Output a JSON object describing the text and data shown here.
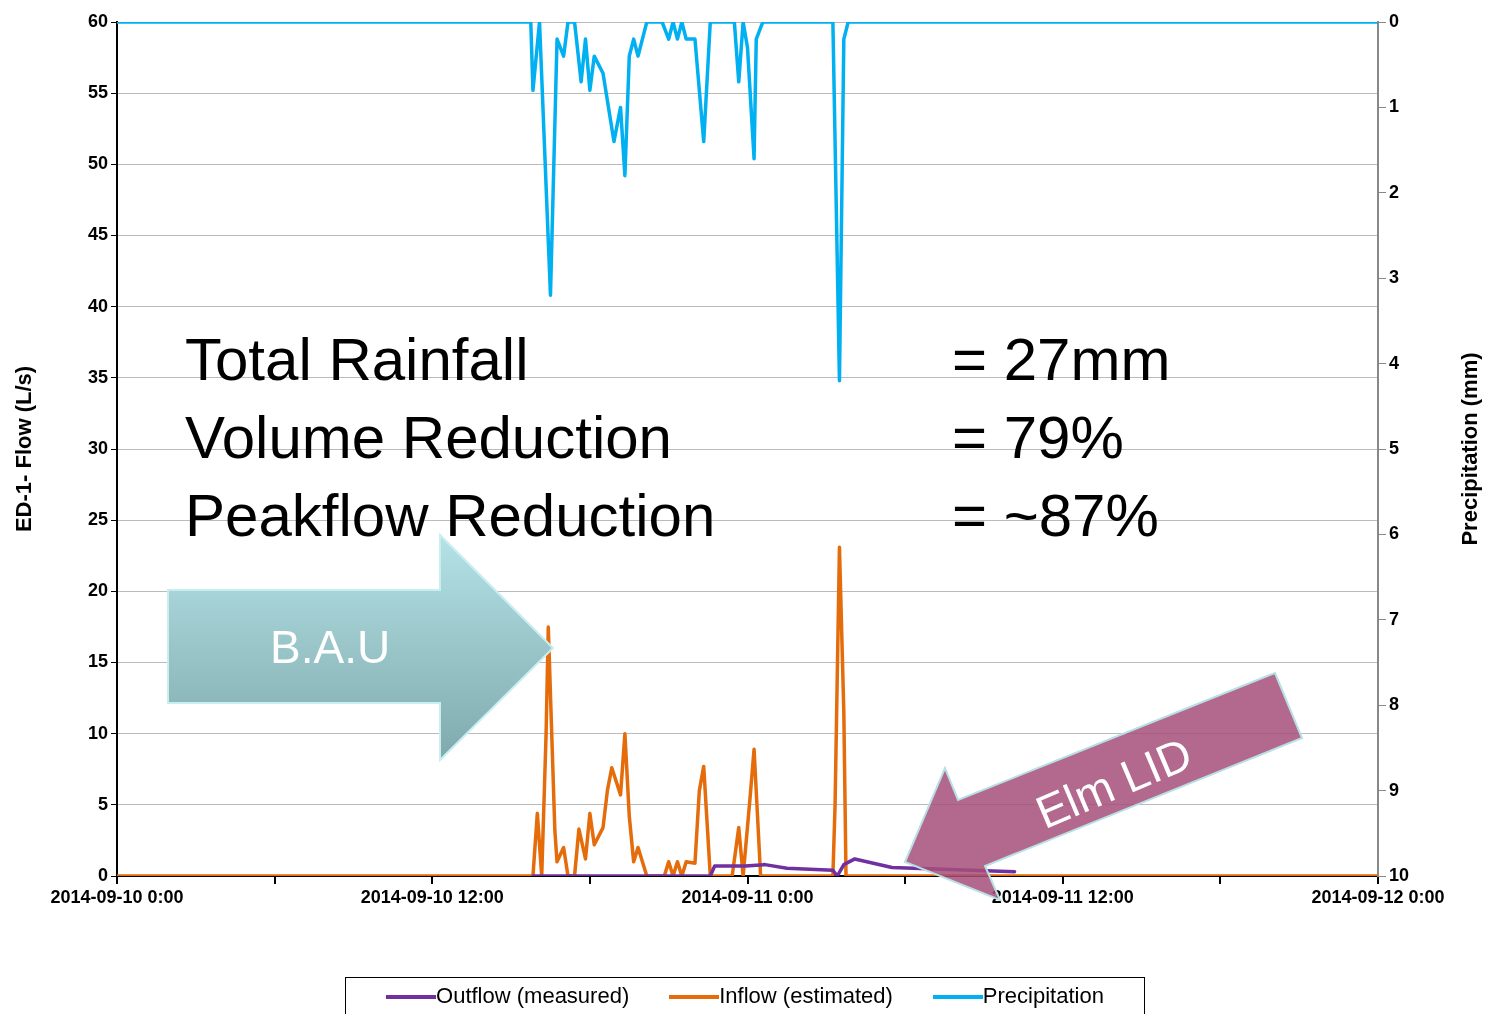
{
  "chart_data": {
    "type": "line",
    "ylabel": "ED-1- Flow (L/s)",
    "y2label": "Precipitation (mm)",
    "xlim": [
      "2014-09-10T00:00",
      "2014-09-12T00:00"
    ],
    "xticks": [
      {
        "value": "2014-09-10T00:00",
        "label": "2014-09-10 0:00"
      },
      {
        "value": "2014-09-10T06:00",
        "label": null
      },
      {
        "value": "2014-09-10T12:00",
        "label": "2014-09-10 12:00"
      },
      {
        "value": "2014-09-10T18:00",
        "label": null
      },
      {
        "value": "2014-09-11T00:00",
        "label": "2014-09-11 0:00"
      },
      {
        "value": "2014-09-11T06:00",
        "label": null
      },
      {
        "value": "2014-09-11T12:00",
        "label": "2014-09-11 12:00"
      },
      {
        "value": "2014-09-11T18:00",
        "label": null
      },
      {
        "value": "2014-09-12T00:00",
        "label": "2014-09-12 0:00"
      }
    ],
    "ylim": [
      0,
      60
    ],
    "yticks": [
      0,
      5,
      10,
      15,
      20,
      25,
      30,
      35,
      40,
      45,
      50,
      55,
      60
    ],
    "y2lim": [
      10,
      0
    ],
    "y2ticks": [
      0,
      1,
      2,
      3,
      4,
      5,
      6,
      7,
      8,
      9,
      10
    ],
    "grid": "y",
    "legend": "bottom",
    "marker": "none",
    "line_style": "solid",
    "series": [
      {
        "name": "Inflow (estimated)",
        "color": "#e46c0a",
        "x": [
          "2014-09-10T00:00",
          "2014-09-10T15:50",
          "2014-09-10T16:00",
          "2014-09-10T16:10",
          "2014-09-10T16:20",
          "2014-09-10T16:25",
          "2014-09-10T16:40",
          "2014-09-10T16:45",
          "2014-09-10T17:00",
          "2014-09-10T17:10",
          "2014-09-10T17:25",
          "2014-09-10T17:35",
          "2014-09-10T17:50",
          "2014-09-10T18:00",
          "2014-09-10T18:10",
          "2014-09-10T18:30",
          "2014-09-10T18:40",
          "2014-09-10T18:50",
          "2014-09-10T19:10",
          "2014-09-10T19:20",
          "2014-09-10T19:30",
          "2014-09-10T19:40",
          "2014-09-10T19:50",
          "2014-09-10T20:10",
          "2014-09-10T20:50",
          "2014-09-10T21:00",
          "2014-09-10T21:10",
          "2014-09-10T21:20",
          "2014-09-10T21:30",
          "2014-09-10T21:40",
          "2014-09-10T22:00",
          "2014-09-10T22:10",
          "2014-09-10T22:20",
          "2014-09-10T22:35",
          "2014-09-10T23:25",
          "2014-09-10T23:40",
          "2014-09-10T23:50",
          "2014-09-11T00:05",
          "2014-09-11T00:15",
          "2014-09-11T00:30",
          "2014-09-11T03:15",
          "2014-09-11T03:20",
          "2014-09-11T03:30",
          "2014-09-11T03:40",
          "2014-09-11T03:45",
          "2014-09-12T00:00"
        ],
        "values": [
          0,
          0,
          4.4,
          0,
          10,
          17.5,
          3.2,
          1,
          2,
          0,
          0,
          3.3,
          1.2,
          4.4,
          2.2,
          3.4,
          6,
          7.6,
          5.7,
          10,
          4.2,
          1,
          2,
          0,
          0,
          1,
          0,
          1,
          0,
          1,
          0.9,
          6,
          7.7,
          0,
          0,
          3.4,
          0,
          5.2,
          8.9,
          0,
          0,
          5,
          23.1,
          11.5,
          0,
          0
        ]
      },
      {
        "name": "Outflow (measured)",
        "color": "#7030a0",
        "x": [
          "2014-09-10T15:50",
          "2014-09-10T22:35",
          "2014-09-10T22:45",
          "2014-09-10T23:55",
          "2014-09-11T00:40",
          "2014-09-11T01:30",
          "2014-09-11T03:15",
          "2014-09-11T03:25",
          "2014-09-11T03:40",
          "2014-09-11T04:05",
          "2014-09-11T05:30",
          "2014-09-11T10:10"
        ],
        "values": [
          0,
          0,
          0.7,
          0.7,
          0.8,
          0.55,
          0.4,
          0,
          0.8,
          1.2,
          0.6,
          0.3
        ]
      },
      {
        "name": "Precipitation",
        "color": "#00b0f0",
        "axis": "y2",
        "x": [
          "2014-09-10T00:00",
          "2014-09-10T15:45",
          "2014-09-10T15:50",
          "2014-09-10T16:05",
          "2014-09-10T16:30",
          "2014-09-10T16:45",
          "2014-09-10T17:00",
          "2014-09-10T17:10",
          "2014-09-10T17:25",
          "2014-09-10T17:40",
          "2014-09-10T17:50",
          "2014-09-10T18:00",
          "2014-09-10T18:10",
          "2014-09-10T18:30",
          "2014-09-10T18:55",
          "2014-09-10T19:10",
          "2014-09-10T19:20",
          "2014-09-10T19:30",
          "2014-09-10T19:40",
          "2014-09-10T19:50",
          "2014-09-10T20:10",
          "2014-09-10T20:45",
          "2014-09-10T21:00",
          "2014-09-10T21:10",
          "2014-09-10T21:20",
          "2014-09-10T21:30",
          "2014-09-10T21:40",
          "2014-09-10T22:00",
          "2014-09-10T22:20",
          "2014-09-10T22:35",
          "2014-09-10T23:30",
          "2014-09-10T23:40",
          "2014-09-10T23:50",
          "2014-09-11T00:00",
          "2014-09-11T00:15",
          "2014-09-11T00:20",
          "2014-09-11T00:35",
          "2014-09-11T03:15",
          "2014-09-11T03:30",
          "2014-09-11T03:40",
          "2014-09-11T03:50",
          "2014-09-12T00:00"
        ],
        "values": [
          0,
          0,
          0.8,
          0,
          3.2,
          0.2,
          0.4,
          0,
          0,
          0.7,
          0.2,
          0.8,
          0.4,
          0.6,
          1.4,
          1,
          1.8,
          0.4,
          0.2,
          0.4,
          0,
          0,
          0.2,
          0,
          0.2,
          0,
          0.2,
          0.2,
          1.4,
          0,
          0,
          0.7,
          0,
          0.3,
          1.6,
          0.2,
          0,
          0,
          4.2,
          0.2,
          0,
          0
        ]
      }
    ],
    "annotations": [
      "Total Rainfall = 27mm",
      "Volume Reduction = 79%",
      "Peakflow Reduction = ~87%",
      "B.A.U",
      "Elm LID"
    ]
  }
}
